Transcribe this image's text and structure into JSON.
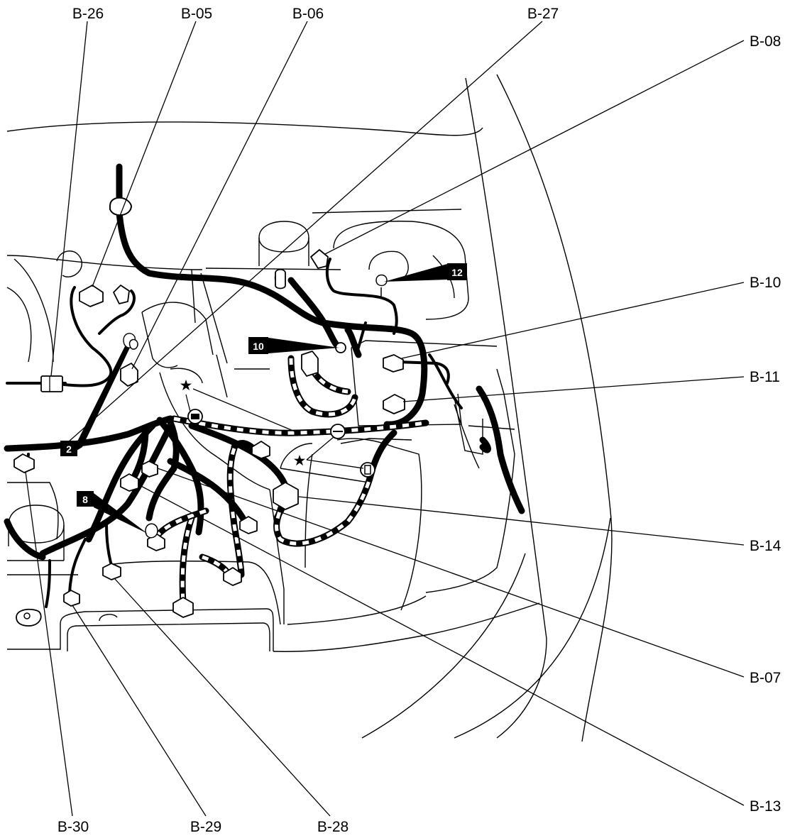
{
  "diagram": {
    "connectors": {
      "b26": "B-26",
      "b05": "B-05",
      "b06": "B-06",
      "b27": "B-27",
      "b08": "B-08",
      "b10": "B-10",
      "b11": "B-11",
      "b14": "B-14",
      "b07": "B-07",
      "b13": "B-13",
      "b28": "B-28",
      "b29": "B-29",
      "b30": "B-30"
    },
    "ground_points": {
      "g2": "2",
      "g8": "8",
      "g10": "10",
      "g12": "12"
    },
    "symbols": {
      "star": "★"
    },
    "colors": {
      "line": "#000000",
      "background": "#ffffff"
    }
  }
}
